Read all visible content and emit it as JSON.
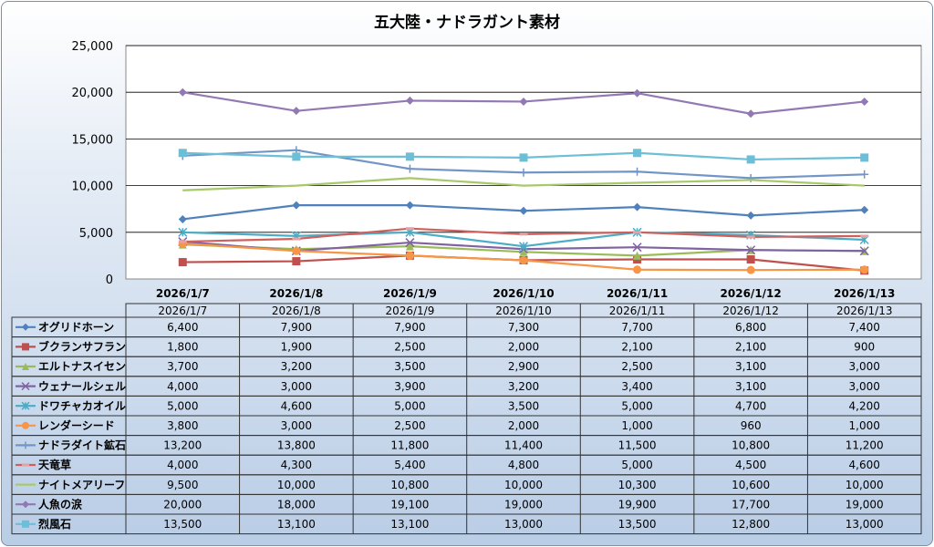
{
  "chart_data": {
    "type": "line",
    "title": "五大陸・ナドラガント素材",
    "xlabel": "",
    "ylabel": "",
    "ylim": [
      0,
      25000
    ],
    "yticks": [
      0,
      5000,
      10000,
      15000,
      20000,
      25000
    ],
    "ytick_labels": [
      "0",
      "5,000",
      "10,000",
      "15,000",
      "20,000",
      "25,000"
    ],
    "grid": true,
    "legend": "data-table",
    "categories": [
      "2026/1/7",
      "2026/1/8",
      "2026/1/9",
      "2026/1/10",
      "2026/1/11",
      "2026/1/12",
      "2026/1/13"
    ],
    "series": [
      {
        "name": "オグリドホーン",
        "color": "#4F81BD",
        "marker": "diamond",
        "values": [
          6400,
          7900,
          7900,
          7300,
          7700,
          6800,
          7400
        ],
        "labels": [
          "6,400",
          "7,900",
          "7,900",
          "7,300",
          "7,700",
          "6,800",
          "7,400"
        ]
      },
      {
        "name": "ブクランサフラン",
        "color": "#C0504D",
        "marker": "square",
        "values": [
          1800,
          1900,
          2500,
          2000,
          2100,
          2100,
          900
        ],
        "labels": [
          "1,800",
          "1,900",
          "2,500",
          "2,000",
          "2,100",
          "2,100",
          "900"
        ]
      },
      {
        "name": "エルトナスイセン",
        "color": "#9BBB59",
        "marker": "triangle",
        "values": [
          3700,
          3200,
          3500,
          2900,
          2500,
          3100,
          3000
        ],
        "labels": [
          "3,700",
          "3,200",
          "3,500",
          "2,900",
          "2,500",
          "3,100",
          "3,000"
        ]
      },
      {
        "name": "ウェナールシェル",
        "color": "#8064A2",
        "marker": "x",
        "values": [
          4000,
          3000,
          3900,
          3200,
          3400,
          3100,
          3000
        ],
        "labels": [
          "4,000",
          "3,000",
          "3,900",
          "3,200",
          "3,400",
          "3,100",
          "3,000"
        ]
      },
      {
        "name": "ドワチャカオイル",
        "color": "#4BACC6",
        "marker": "star",
        "values": [
          5000,
          4600,
          5000,
          3500,
          5000,
          4700,
          4200
        ],
        "labels": [
          "5,000",
          "4,600",
          "5,000",
          "3,500",
          "5,000",
          "4,700",
          "4,200"
        ]
      },
      {
        "name": "レンダーシード",
        "color": "#F79646",
        "marker": "circle",
        "values": [
          3800,
          3000,
          2500,
          2000,
          1000,
          960,
          1000
        ],
        "labels": [
          "3,800",
          "3,000",
          "2,500",
          "2,000",
          "1,000",
          "960",
          "1,000"
        ]
      },
      {
        "name": "ナドラダイト鉱石",
        "color": "#7295C8",
        "marker": "plus",
        "values": [
          13200,
          13800,
          11800,
          11400,
          11500,
          10800,
          11200
        ],
        "labels": [
          "13,200",
          "13,800",
          "11,800",
          "11,400",
          "11,500",
          "10,800",
          "11,200"
        ]
      },
      {
        "name": "天竜草",
        "color": "#D0605D",
        "marker": "dash",
        "values": [
          4000,
          4300,
          5400,
          4800,
          5000,
          4500,
          4600
        ],
        "labels": [
          "4,000",
          "4,300",
          "5,400",
          "4,800",
          "5,000",
          "4,500",
          "4,600"
        ]
      },
      {
        "name": "ナイトメアリーフ",
        "color": "#A8C96B",
        "marker": "none",
        "values": [
          9500,
          10000,
          10800,
          10000,
          10300,
          10600,
          10000
        ],
        "labels": [
          "9,500",
          "10,000",
          "10,800",
          "10,000",
          "10,300",
          "10,600",
          "10,000"
        ]
      },
      {
        "name": "人魚の涙",
        "color": "#9279B4",
        "marker": "diamond",
        "values": [
          20000,
          18000,
          19100,
          19000,
          19900,
          17700,
          19000
        ],
        "labels": [
          "20,000",
          "18,000",
          "19,100",
          "19,000",
          "19,900",
          "17,700",
          "19,000"
        ]
      },
      {
        "name": "烈風石",
        "color": "#6CBFD6",
        "marker": "square",
        "values": [
          13500,
          13100,
          13100,
          13000,
          13500,
          12800,
          13000
        ],
        "labels": [
          "13,500",
          "13,100",
          "13,100",
          "13,000",
          "13,500",
          "12,800",
          "13,000"
        ]
      }
    ]
  }
}
